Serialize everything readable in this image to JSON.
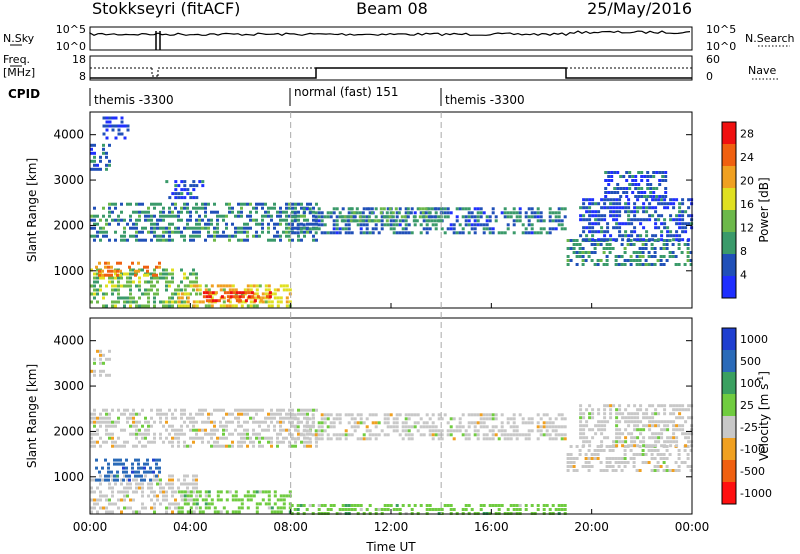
{
  "header": {
    "station": "Stokkseyri (fitACF)",
    "beam": "Beam 08",
    "date": "25/May/2016"
  },
  "noise_panel": {
    "left_label": "N.Sky",
    "right_label": "N.Search",
    "left_ticks": [
      "10^5",
      "10^0"
    ],
    "right_ticks": [
      "10^5",
      "10^0"
    ]
  },
  "freq_panel": {
    "left_label_top": "Freq.",
    "left_label_bottom": "[MHz]",
    "left_ticks": [
      "18",
      "8"
    ],
    "right_label": "Nave",
    "right_ticks": [
      "60",
      "0"
    ]
  },
  "cpid": {
    "label": "CPID",
    "segments": [
      {
        "start_hour": 0,
        "name": "themis -3300"
      },
      {
        "start_hour": 8,
        "name": "normal (fast) 151"
      },
      {
        "start_hour": 14,
        "name": "themis -3300"
      }
    ]
  },
  "chart_data": [
    {
      "type": "heatmap",
      "quantity": "Power",
      "ylabel": "Slant Range [km]",
      "xlabel": "",
      "x_range_hours": [
        0,
        24
      ],
      "ylim": [
        180,
        4500
      ],
      "yticks": [
        "1000",
        "2000",
        "3000",
        "4000"
      ],
      "colorbar": {
        "label": "Power [dB]",
        "range": [
          0,
          30
        ],
        "ticks": [
          "4",
          "8",
          "12",
          "16",
          "20",
          "24",
          "28"
        ],
        "colors": [
          "#1f2fff",
          "#2050b8",
          "#3a9a6a",
          "#6cb84a",
          "#e0e020",
          "#f0a020",
          "#f06010",
          "#f01010"
        ]
      },
      "regions": [
        {
          "t": [
            0.0,
            4.2
          ],
          "r": [
            250,
            1050
          ],
          "v": 12
        },
        {
          "t": [
            0.2,
            2.8
          ],
          "r": [
            900,
            1200
          ],
          "v": 22
        },
        {
          "t": [
            3.5,
            8.0
          ],
          "r": [
            250,
            700
          ],
          "v": 18
        },
        {
          "t": [
            4.5,
            7.2
          ],
          "r": [
            350,
            550
          ],
          "v": 26
        },
        {
          "t": [
            0.0,
            9.0
          ],
          "r": [
            1700,
            2500
          ],
          "v": 8
        },
        {
          "t": [
            8.0,
            19.0
          ],
          "r": [
            1800,
            2400
          ],
          "v": 7
        },
        {
          "t": [
            10.0,
            14.0
          ],
          "r": [
            2100,
            2400
          ],
          "v": 10
        },
        {
          "t": [
            19.0,
            24.0
          ],
          "r": [
            1100,
            1700
          ],
          "v": 9
        },
        {
          "t": [
            19.5,
            24.0
          ],
          "r": [
            1700,
            2600
          ],
          "v": 5
        },
        {
          "t": [
            0.0,
            0.8
          ],
          "r": [
            3200,
            3800
          ],
          "v": 6
        },
        {
          "t": [
            0.5,
            1.5
          ],
          "r": [
            3900,
            4400
          ],
          "v": 3
        },
        {
          "t": [
            3.0,
            4.5
          ],
          "r": [
            2600,
            3000
          ],
          "v": 5
        },
        {
          "t": [
            20.5,
            23.0
          ],
          "r": [
            2600,
            3200
          ],
          "v": 5
        }
      ]
    },
    {
      "type": "heatmap",
      "quantity": "Velocity",
      "ylabel": "Slant Range [km]",
      "xlabel": "Time UT",
      "x_range_hours": [
        0,
        24
      ],
      "xticks": [
        "00:00",
        "04:00",
        "08:00",
        "12:00",
        "16:00",
        "20:00",
        "00:00"
      ],
      "ylim": [
        180,
        4500
      ],
      "yticks": [
        "1000",
        "2000",
        "3000",
        "4000"
      ],
      "colorbar": {
        "label": "Velocity [m s^-1]",
        "ticks": [
          "1000",
          "500",
          "100",
          "25",
          "-25",
          "-100",
          "-500",
          "-1000"
        ],
        "colors": [
          "#1f3fd0",
          "#2a6ab8",
          "#3aa060",
          "#70cc40",
          "#c8c8c8",
          "#f0a020",
          "#f06010",
          "#ff1010"
        ]
      },
      "regions": [
        {
          "t": [
            0.0,
            4.2
          ],
          "r": [
            250,
            1050
          ],
          "v": 4
        },
        {
          "t": [
            0.2,
            2.8
          ],
          "r": [
            900,
            1400
          ],
          "v": 1
        },
        {
          "t": [
            3.5,
            8.0
          ],
          "r": [
            250,
            700
          ],
          "v": 3
        },
        {
          "t": [
            0.0,
            9.0
          ],
          "r": [
            1700,
            2500
          ],
          "v": 4
        },
        {
          "t": [
            8.0,
            19.0
          ],
          "r": [
            1800,
            2400
          ],
          "v": 4
        },
        {
          "t": [
            19.0,
            24.0
          ],
          "r": [
            1100,
            1700
          ],
          "v": 4
        },
        {
          "t": [
            19.5,
            24.0
          ],
          "r": [
            1700,
            2600
          ],
          "v": 4
        },
        {
          "t": [
            8.0,
            19.0
          ],
          "r": [
            200,
            400
          ],
          "v": 3
        },
        {
          "t": [
            0.0,
            0.8
          ],
          "r": [
            3200,
            3800
          ],
          "v": 4
        }
      ]
    }
  ]
}
